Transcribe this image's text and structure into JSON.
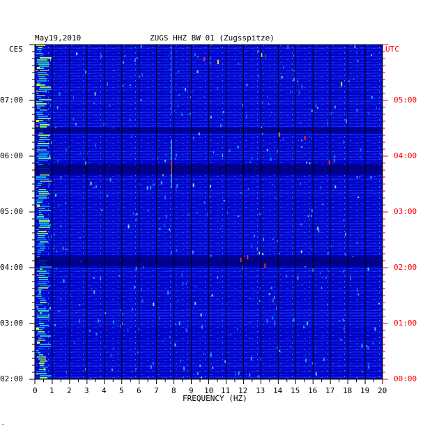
{
  "header": {
    "date": "May19,2010",
    "station": "ZUGS HHZ BW 01 (Zugsspitze)"
  },
  "left_axis_unit": "CES",
  "right_axis_unit": "UTC",
  "footer_mark": "″",
  "colors": {
    "background": "#0000c8",
    "grid": "#000000",
    "left_text": "#000000",
    "right_text": "#ff0000"
  },
  "chart_data": {
    "type": "heatmap",
    "title": "ZUGS HHZ BW 01 (Zugsspitze)",
    "date": "May19,2010",
    "xlabel": "FREQUENCY (HZ)",
    "x_ticks": [
      "0",
      "1",
      "2",
      "3",
      "4",
      "5",
      "6",
      "7",
      "8",
      "9",
      "10",
      "11",
      "12",
      "13",
      "14",
      "15",
      "16",
      "17",
      "18",
      "19",
      "20"
    ],
    "xlim": [
      0,
      20
    ],
    "left_time_ticks": [
      "07:00",
      "06:00",
      "05:00",
      "04:00",
      "03:00",
      "02:00"
    ],
    "right_time_ticks": [
      "05:00",
      "04:00",
      "03:00",
      "02:00",
      "01:00",
      "00:00"
    ],
    "left_time_zone": "CES",
    "right_time_zone": "UTC",
    "grid": true,
    "notes_on_intensity": "energy concentrated below 1 Hz; narrow lines near 8 Hz; dark quiet bands near 06:35, 05:50 and 04:10 local time"
  }
}
